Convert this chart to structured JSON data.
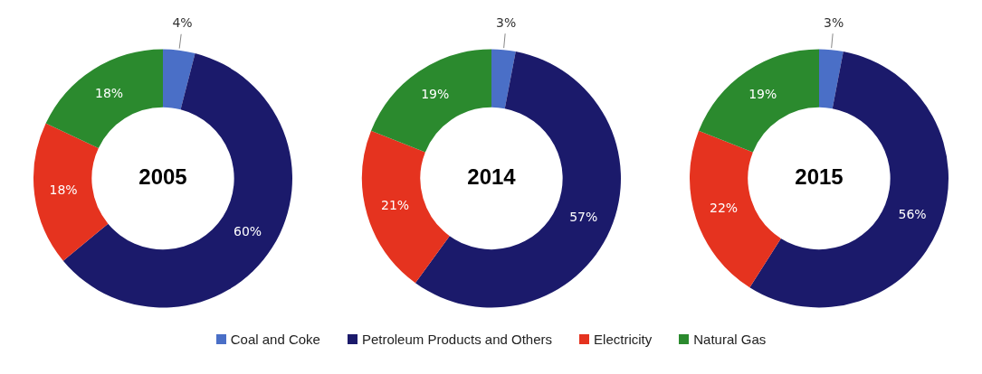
{
  "chart_data": [
    {
      "type": "donut",
      "title": "2005",
      "categories": [
        "Coal and Coke",
        "Petroleum Products and Others",
        "Electricity",
        "Natural Gas"
      ],
      "values": [
        4,
        60,
        18,
        18
      ],
      "value_labels": [
        "4%",
        "60%",
        "18%",
        "18%"
      ],
      "colors": [
        "#4a6fc7",
        "#1b1a6b",
        "#e5331f",
        "#2b8a2e"
      ],
      "legend": "bottom"
    },
    {
      "type": "donut",
      "title": "2014",
      "categories": [
        null,
        null,
        null,
        null
      ],
      "values": [
        3,
        57,
        21,
        19
      ],
      "value_labels": [
        "3%",
        "57%",
        "21%",
        "19%"
      ],
      "colors": [
        "#4a6fc7",
        "#1b1a6b",
        "#e5331f",
        "#2b8a2e"
      ]
    },
    {
      "type": "donut",
      "title": "2015",
      "categories": [
        null,
        null,
        null,
        null
      ],
      "values": [
        3,
        56,
        22,
        19
      ],
      "value_labels": [
        "3%",
        "56%",
        "22%",
        "19%"
      ],
      "colors": [
        "#4a6fc7",
        "#1b1a6b",
        "#e5331f",
        "#2b8a2e"
      ]
    }
  ]
}
